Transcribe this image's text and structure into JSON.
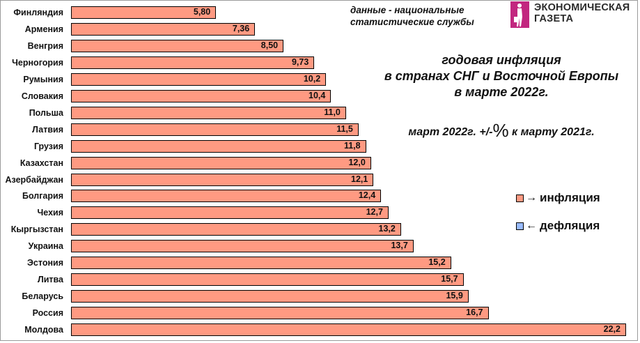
{
  "source": {
    "line1": "данные - национальные",
    "line2": "статистические службы"
  },
  "logo": {
    "icon": "walking-person-icon",
    "line1": "ЭКОНОМИЧЕСКАЯ",
    "line2": "ГАЗЕТА",
    "color": "#C2277F"
  },
  "title": {
    "line1": "годовая инфляция",
    "line2": "в странах СНГ и Восточной Европы",
    "line3": "в марте 2022г."
  },
  "subtitle": {
    "before": "март 2022г. +/-",
    "pct": "%",
    "after": " к марту 2021г."
  },
  "legend": {
    "inflation": {
      "arrow": "→",
      "label": "инфляция",
      "color": "#FF9A82"
    },
    "deflation": {
      "arrow": "←",
      "label": "дефляция",
      "color": "#99BBFF"
    }
  },
  "chart_data": {
    "type": "bar",
    "orientation": "horizontal",
    "title": "годовая инфляция в странах СНГ и Восточной Европы в марте 2022г.",
    "subtitle": "март 2022г. +/-% к марту 2021г.",
    "xlabel": "",
    "ylabel": "",
    "grid": false,
    "legend": [
      "→ инфляция",
      "← дефляция"
    ],
    "legend_position": "right",
    "categories": [
      "Финляндия",
      "Армения",
      "Венгрия",
      "Черногория",
      "Румыния",
      "Словакия",
      "Польша",
      "Латвия",
      "Грузия",
      "Казахстан",
      "Азербайджан",
      "Болгария",
      "Чехия",
      "Кыргызстан",
      "Украина",
      "Эстония",
      "Литва",
      "Беларусь",
      "Россия",
      "Молдова"
    ],
    "values": [
      5.8,
      7.36,
      8.5,
      9.73,
      10.2,
      10.4,
      11.0,
      11.5,
      11.8,
      12.0,
      12.1,
      12.4,
      12.7,
      13.2,
      13.7,
      15.2,
      15.7,
      15.9,
      16.7,
      22.2
    ],
    "value_labels": [
      "5,80",
      "7,36",
      "8,50",
      "9,73",
      "10,2",
      "10,4",
      "11,0",
      "11,5",
      "11,8",
      "12,0",
      "12,1",
      "12,4",
      "12,7",
      "13,2",
      "13,7",
      "15,2",
      "15,7",
      "15,9",
      "16,7",
      "22,2"
    ],
    "bar_color": "#FF9A82"
  }
}
